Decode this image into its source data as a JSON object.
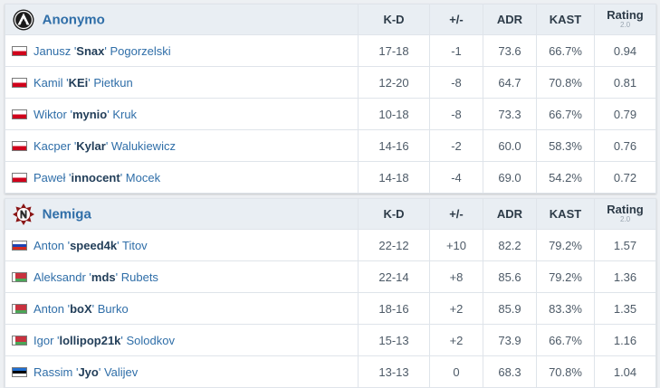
{
  "columns": {
    "kd": "K-D",
    "plus_minus": "+/-",
    "adr": "ADR",
    "kast": "KAST",
    "rating": "Rating",
    "rating_version": "2.0"
  },
  "teams": [
    {
      "name": "Anonymo",
      "logo_icon": "anonymo-logo-icon",
      "players": [
        {
          "flag": "poland-flag-icon",
          "first": "Janusz",
          "nick": "Snax",
          "last": "Pogorzelski",
          "kd": "17-18",
          "pm": "-1",
          "adr": "73.6",
          "kast": "66.7%",
          "rating": "0.94"
        },
        {
          "flag": "poland-flag-icon",
          "first": "Kamil",
          "nick": "KEi",
          "last": "Pietkun",
          "kd": "12-20",
          "pm": "-8",
          "adr": "64.7",
          "kast": "70.8%",
          "rating": "0.81"
        },
        {
          "flag": "poland-flag-icon",
          "first": "Wiktor",
          "nick": "mynio",
          "last": "Kruk",
          "kd": "10-18",
          "pm": "-8",
          "adr": "73.3",
          "kast": "66.7%",
          "rating": "0.79"
        },
        {
          "flag": "poland-flag-icon",
          "first": "Kacper",
          "nick": "Kylar",
          "last": "Walukiewicz",
          "kd": "14-16",
          "pm": "-2",
          "adr": "60.0",
          "kast": "58.3%",
          "rating": "0.76"
        },
        {
          "flag": "poland-flag-icon",
          "first": "Paweł",
          "nick": "innocent",
          "last": "Mocek",
          "kd": "14-18",
          "pm": "-4",
          "adr": "69.0",
          "kast": "54.2%",
          "rating": "0.72"
        }
      ]
    },
    {
      "name": "Nemiga",
      "logo_icon": "nemiga-logo-icon",
      "players": [
        {
          "flag": "russia-flag-icon",
          "first": "Anton",
          "nick": "speed4k",
          "last": "Titov",
          "kd": "22-12",
          "pm": "+10",
          "adr": "82.2",
          "kast": "79.2%",
          "rating": "1.57"
        },
        {
          "flag": "belarus-flag-icon",
          "first": "Aleksandr",
          "nick": "mds",
          "last": "Rubets",
          "kd": "22-14",
          "pm": "+8",
          "adr": "85.6",
          "kast": "79.2%",
          "rating": "1.36"
        },
        {
          "flag": "belarus-flag-icon",
          "first": "Anton",
          "nick": "boX",
          "last": "Burko",
          "kd": "18-16",
          "pm": "+2",
          "adr": "85.9",
          "kast": "83.3%",
          "rating": "1.35"
        },
        {
          "flag": "belarus-flag-icon",
          "first": "Igor",
          "nick": "lollipop21k",
          "last": "Solodkov",
          "kd": "15-13",
          "pm": "+2",
          "adr": "73.9",
          "kast": "66.7%",
          "rating": "1.16"
        },
        {
          "flag": "estonia-flag-icon",
          "first": "Rassim",
          "nick": "Jyo",
          "last": "Valijev",
          "kd": "13-13",
          "pm": "0",
          "adr": "68.3",
          "kast": "70.8%",
          "rating": "1.04"
        }
      ]
    }
  ],
  "colors": {
    "team_name": "#2f6ea8",
    "negative": "#e02d2d",
    "positive": "#1f9d3a",
    "header_bg": "#e9eef3"
  }
}
